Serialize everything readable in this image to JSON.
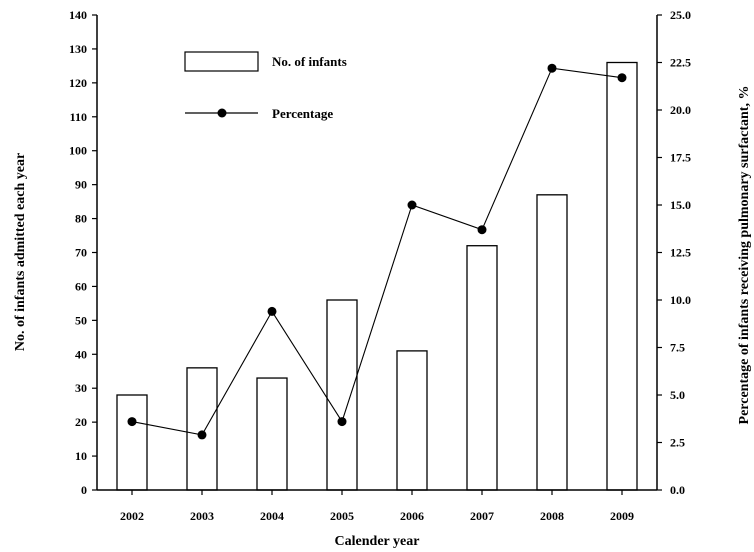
{
  "chart_data": {
    "type": "bar",
    "title": "",
    "xlabel": "Calender year",
    "ylabel": "No. of infants admitted each year",
    "y2label": "Percentage of infants receiving pulmonary surfactant, %",
    "categories": [
      "2002",
      "2003",
      "2004",
      "2005",
      "2006",
      "2007",
      "2008",
      "2009"
    ],
    "series": [
      {
        "name": "No. of infants",
        "type": "bar",
        "axis": "left",
        "values": [
          28,
          36,
          33,
          56,
          41,
          72,
          87,
          126
        ]
      },
      {
        "name": "Percentage",
        "type": "line",
        "axis": "right",
        "values": [
          3.6,
          2.9,
          9.4,
          3.6,
          15.0,
          13.7,
          22.2,
          21.7
        ]
      }
    ],
    "ylim": [
      0,
      140
    ],
    "y2lim": [
      0,
      25
    ],
    "yticks": [
      "0",
      "10",
      "20",
      "30",
      "40",
      "50",
      "60",
      "70",
      "80",
      "90",
      "100",
      "110",
      "120",
      "130",
      "140"
    ],
    "y2ticks": [
      "0.0",
      "2.5",
      "5.0",
      "7.5",
      "10.0",
      "12.5",
      "15.0",
      "17.5",
      "20.0",
      "22.5",
      "25.0"
    ],
    "grid": false,
    "legend": "top-left"
  }
}
